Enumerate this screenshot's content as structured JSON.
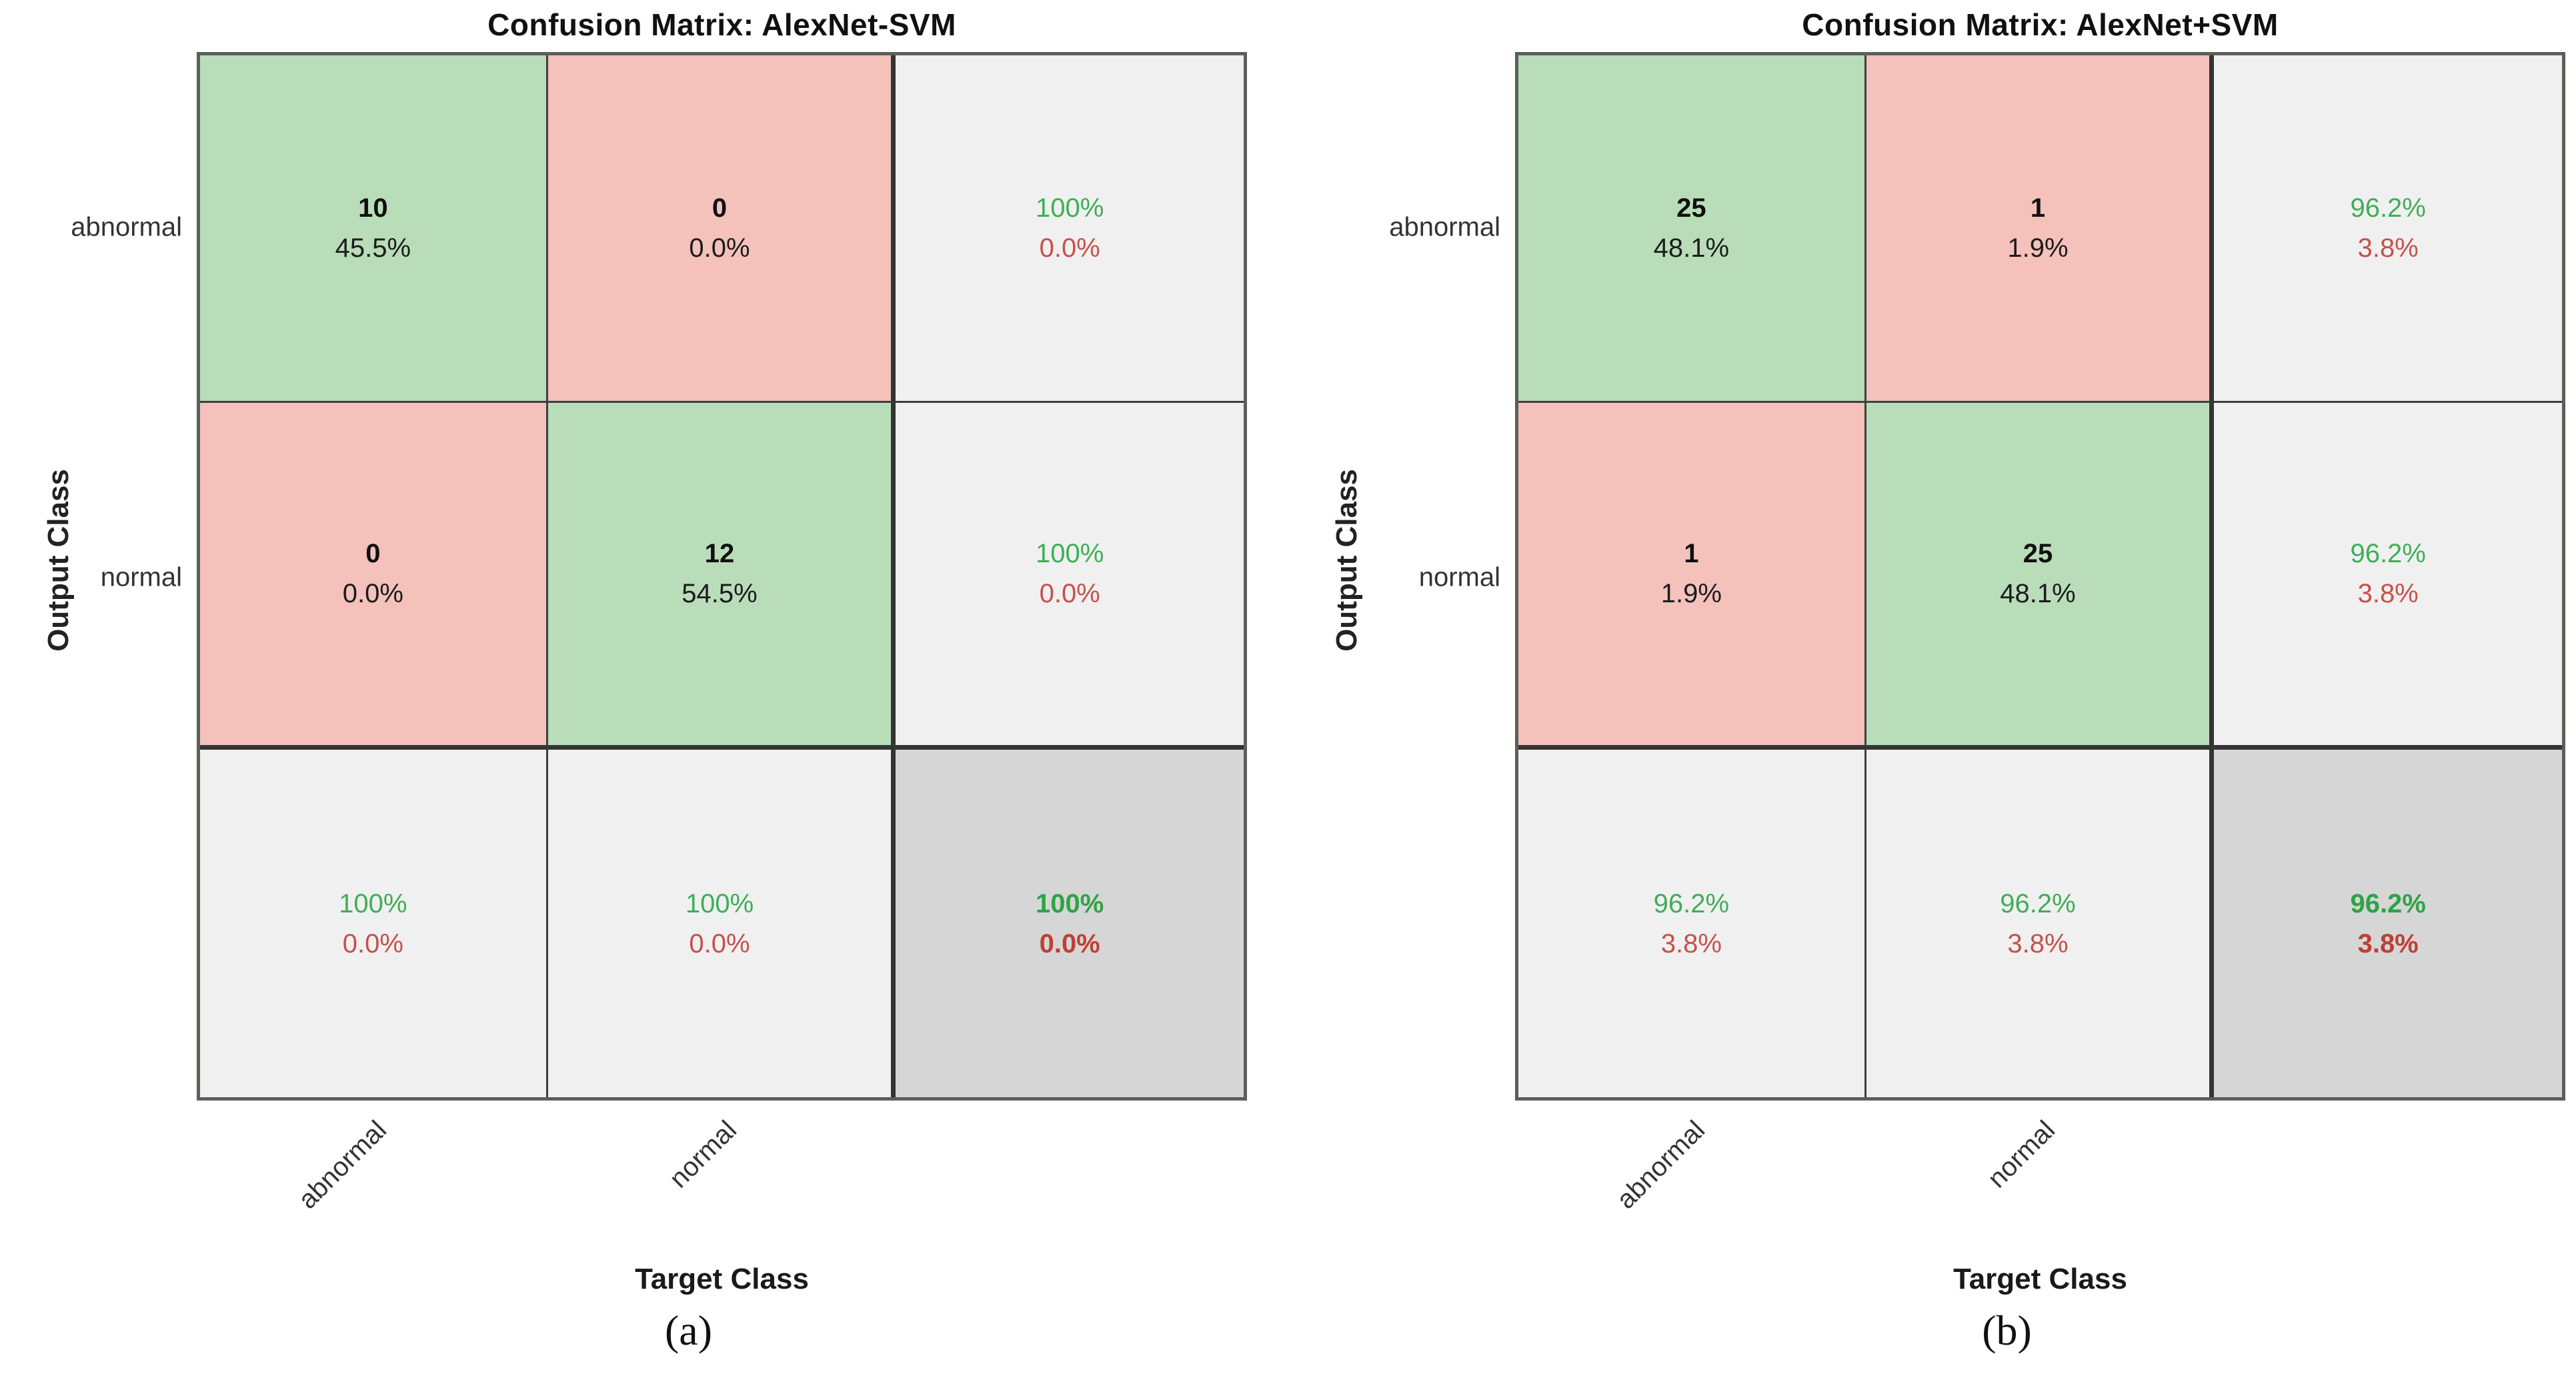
{
  "figure_type": "matlab-style confusion matrix figure, two subplots",
  "colors": {
    "correct_cell_fill": "#b9ddb9",
    "error_cell_fill": "#f4c1bb",
    "summary_cell_fill": "#f0f0f0",
    "corner_cell_fill": "#d6d6d6",
    "summary_green_text": "#3fae56",
    "summary_red_text": "#c6504b",
    "grid_line": "#3e3e3e"
  },
  "chart_data": [
    {
      "type": "heatmap",
      "title": "Confusion Matrix: AlexNet-SVM",
      "xlabel": "Target Class",
      "ylabel": "Output Class",
      "x_tick_labels": [
        "abnormal",
        "normal"
      ],
      "y_tick_labels": [
        "abnormal",
        "normal"
      ],
      "counts": [
        [
          10,
          0
        ],
        [
          0,
          12
        ]
      ],
      "count_percent_of_total": [
        [
          "45.5%",
          "0.0%"
        ],
        [
          "0.0%",
          "54.5%"
        ]
      ],
      "row_summary_green_red": [
        [
          "100%",
          "0.0%"
        ],
        [
          "100%",
          "0.0%"
        ]
      ],
      "column_summary_green_red": [
        [
          "100%",
          "0.0%"
        ],
        [
          "100%",
          "0.0%"
        ]
      ],
      "overall_summary_green_red": [
        "100%",
        "0.0%"
      ],
      "subfigure_label": "(a)",
      "legend_position": "none",
      "grid": "on"
    },
    {
      "type": "heatmap",
      "title": "Confusion Matrix: AlexNet+SVM",
      "xlabel": "Target Class",
      "ylabel": "Output Class",
      "x_tick_labels": [
        "abnormal",
        "normal"
      ],
      "y_tick_labels": [
        "abnormal",
        "normal"
      ],
      "counts": [
        [
          25,
          1
        ],
        [
          1,
          25
        ]
      ],
      "count_percent_of_total": [
        [
          "48.1%",
          "1.9%"
        ],
        [
          "1.9%",
          "48.1%"
        ]
      ],
      "row_summary_green_red": [
        [
          "96.2%",
          "3.8%"
        ],
        [
          "96.2%",
          "3.8%"
        ]
      ],
      "column_summary_green_red": [
        [
          "96.2%",
          "3.8%"
        ],
        [
          "96.2%",
          "3.8%"
        ]
      ],
      "overall_summary_green_red": [
        "96.2%",
        "3.8%"
      ],
      "subfigure_label": "(b)",
      "legend_position": "none",
      "grid": "on"
    }
  ]
}
